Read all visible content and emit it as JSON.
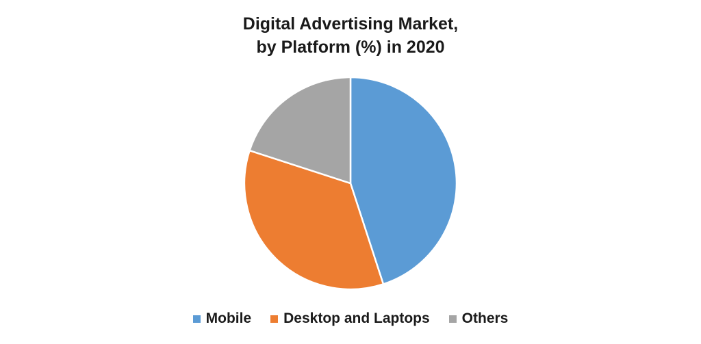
{
  "chart_data": {
    "type": "pie",
    "title_lines": [
      "Digital Advertising Market,",
      "by Platform (%) in 2020"
    ],
    "slices": [
      {
        "label": "Mobile",
        "value": 45,
        "color": "#5B9BD5"
      },
      {
        "label": "Desktop and Laptops",
        "value": 35,
        "color": "#ED7D31"
      },
      {
        "label": "Others",
        "value": 20,
        "color": "#A5A5A5"
      }
    ],
    "legend_position": "bottom"
  }
}
